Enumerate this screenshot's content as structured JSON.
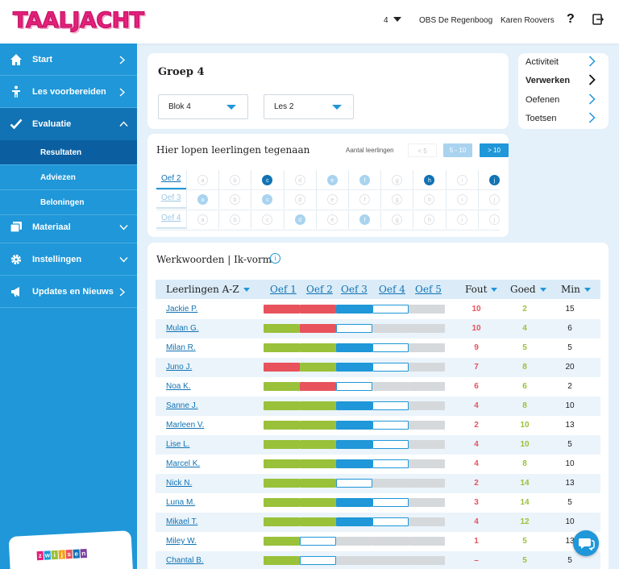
{
  "header": {
    "logo": "TAALJACHT",
    "group_selector": "4",
    "school": "OBS De Regenboog",
    "user": "Karen Roovers",
    "help": "?"
  },
  "sidebar": {
    "items": [
      {
        "label": "Start",
        "icon": "home-icon"
      },
      {
        "label": "Les voorbereiden",
        "icon": "person-icon"
      },
      {
        "label": "Evaluatie",
        "icon": "checkmark-icon"
      },
      {
        "label": "Materiaal",
        "icon": "cards-icon"
      },
      {
        "label": "Instellingen",
        "icon": "gear-icon"
      },
      {
        "label": "Updates en Nieuws",
        "icon": "megaphone-icon"
      }
    ],
    "subitems": [
      "Resultaten",
      "Adviezen",
      "Beloningen"
    ],
    "brand": "zwijsen"
  },
  "groep": {
    "title": "Groep 4",
    "blok": "Blok 4",
    "les": "Les 2"
  },
  "right_nav": [
    "Activiteit",
    "Verwerken",
    "Oefenen",
    "Toetsen"
  ],
  "progress_grid": {
    "title": "Hier lopen leerlingen tegenaan",
    "aantal_label": "Aantal leerlingen",
    "filters": [
      "< 5",
      "5 - 10",
      "> 10"
    ],
    "letters": [
      "a",
      "b",
      "c",
      "d",
      "e",
      "f",
      "g",
      "h",
      "i",
      "j"
    ],
    "rows": [
      {
        "label": "Oef 2",
        "states": [
          "none",
          "none",
          "dark",
          "none",
          "light",
          "light",
          "none",
          "dark",
          "none",
          "dark"
        ]
      },
      {
        "label": "Oef 3",
        "states": [
          "light",
          "none",
          "light",
          "none",
          "none",
          "none",
          "none",
          "none",
          "none",
          "none"
        ]
      },
      {
        "label": "Oef 4",
        "states": [
          "none",
          "none",
          "none",
          "light",
          "none",
          "light",
          "none",
          "none",
          "none",
          "none"
        ]
      }
    ]
  },
  "table": {
    "title": "Werkwoorden | Ik-vorm",
    "headers": {
      "name": "Leerlingen A-Z",
      "oef": [
        "Oef 1",
        "Oef 2",
        "Oef 3",
        "Oef 4",
        "Oef 5"
      ],
      "fout": "Fout",
      "goed": "Goed",
      "min": "Min"
    },
    "rows": [
      {
        "name": "Jackie P.",
        "bars": [
          "red",
          "red",
          "blue",
          "empty",
          "gray"
        ],
        "fout": "10",
        "goed": "2",
        "min": "15"
      },
      {
        "name": "Mulan G.",
        "bars": [
          "green",
          "red",
          "empty",
          "gray",
          "gray"
        ],
        "fout": "10",
        "goed": "4",
        "min": "6"
      },
      {
        "name": "Milan R.",
        "bars": [
          "green",
          "green",
          "blue",
          "empty",
          "gray"
        ],
        "fout": "9",
        "goed": "5",
        "min": "5"
      },
      {
        "name": "Juno J.",
        "bars": [
          "red",
          "green",
          "blue",
          "empty",
          "gray"
        ],
        "fout": "7",
        "goed": "8",
        "min": "20"
      },
      {
        "name": "Noa K.",
        "bars": [
          "green",
          "red",
          "empty",
          "gray",
          "gray"
        ],
        "fout": "6",
        "goed": "6",
        "min": "2"
      },
      {
        "name": "Sanne J.",
        "bars": [
          "green",
          "green",
          "blue",
          "empty",
          "gray"
        ],
        "fout": "4",
        "goed": "8",
        "min": "10"
      },
      {
        "name": "Marleen V.",
        "bars": [
          "green",
          "green",
          "blue",
          "empty",
          "gray"
        ],
        "fout": "2",
        "goed": "10",
        "min": "13"
      },
      {
        "name": "Lise L.",
        "bars": [
          "green",
          "green",
          "blue",
          "empty",
          "gray"
        ],
        "fout": "4",
        "goed": "10",
        "min": "5"
      },
      {
        "name": "Marcel K.",
        "bars": [
          "green",
          "green",
          "blue",
          "empty",
          "gray"
        ],
        "fout": "4",
        "goed": "8",
        "min": "10"
      },
      {
        "name": "Nick N.",
        "bars": [
          "green",
          "green",
          "empty",
          "gray",
          "gray"
        ],
        "fout": "2",
        "goed": "14",
        "min": "13"
      },
      {
        "name": "Luna M.",
        "bars": [
          "green",
          "green",
          "blue",
          "empty",
          "gray"
        ],
        "fout": "3",
        "goed": "14",
        "min": "5"
      },
      {
        "name": "Mikael T.",
        "bars": [
          "green",
          "green",
          "blue",
          "empty",
          "gray"
        ],
        "fout": "4",
        "goed": "12",
        "min": "10"
      },
      {
        "name": "Miley W.",
        "bars": [
          "green",
          "empty",
          "gray",
          "gray",
          "gray"
        ],
        "fout": "1",
        "goed": "5",
        "min": "13"
      },
      {
        "name": "Chantal B.",
        "bars": [
          "green",
          "empty",
          "gray",
          "gray",
          "gray"
        ],
        "fout": "–",
        "goed": "5",
        "min": "5"
      }
    ]
  },
  "colors": {
    "primary": "#1f97d8",
    "active": "#1173b4",
    "red": "#e8525c",
    "green": "#99c13a",
    "blue": "#1f97d8",
    "gray": "#d6d9dc"
  }
}
